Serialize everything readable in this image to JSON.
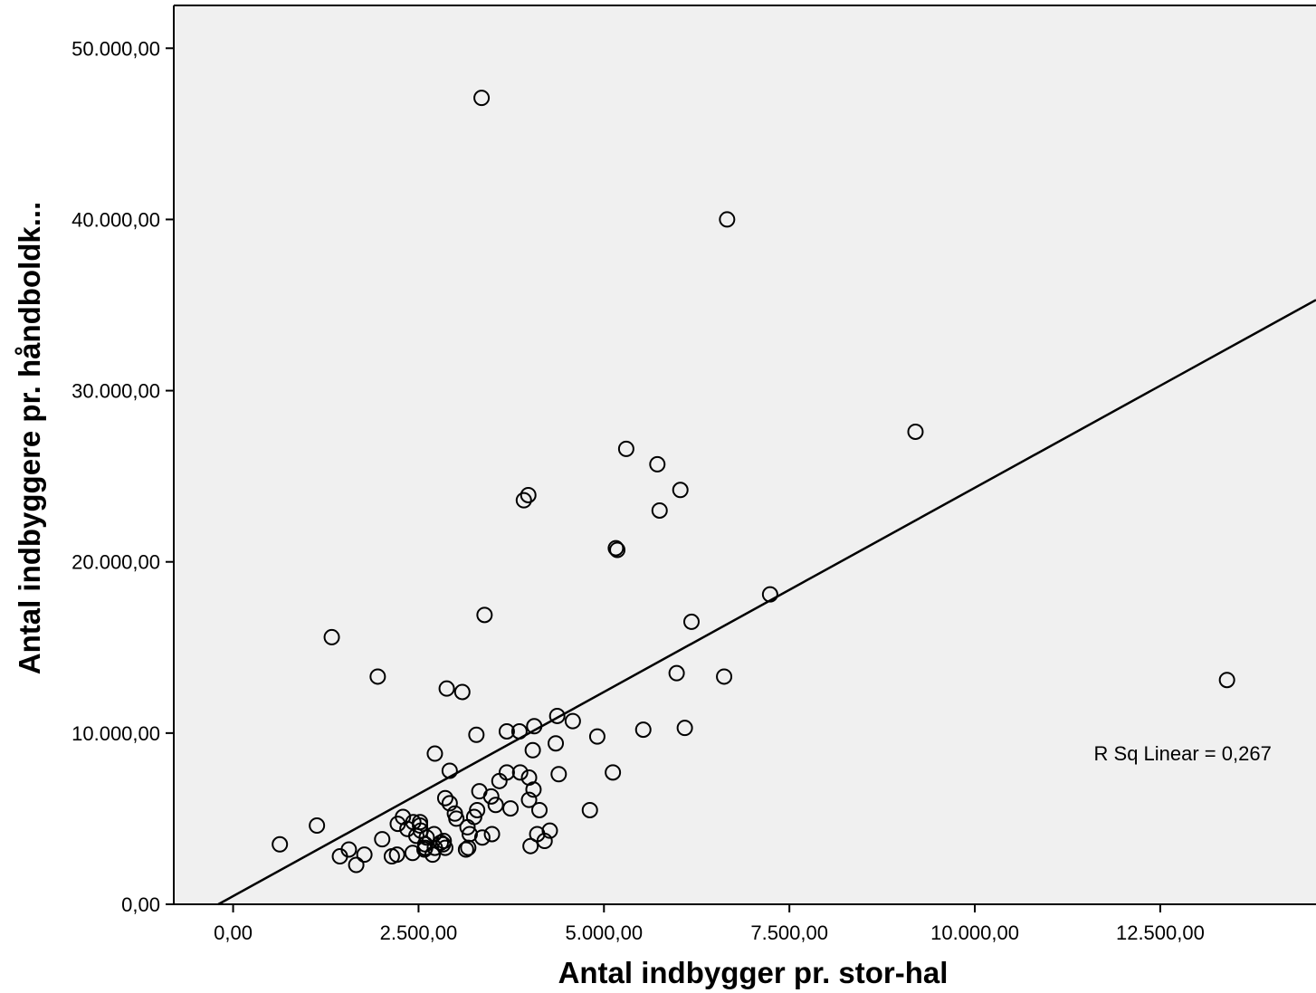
{
  "chart_data": {
    "type": "scatter",
    "xlabel": "Antal indbygger pr. stor-hal",
    "ylabel": "Antal indbyggere pr. håndboldk...",
    "xlim": [
      -800,
      14600
    ],
    "ylim": [
      0,
      52500
    ],
    "x_ticks": [
      {
        "value": 0,
        "label": "0,00"
      },
      {
        "value": 2500,
        "label": "2.500,00"
      },
      {
        "value": 5000,
        "label": "5.000,00"
      },
      {
        "value": 7500,
        "label": "7.500,00"
      },
      {
        "value": 10000,
        "label": "10.000,00"
      },
      {
        "value": 12500,
        "label": "12.500,00"
      }
    ],
    "y_ticks": [
      {
        "value": 0,
        "label": "0,00"
      },
      {
        "value": 10000,
        "label": "10.000,00"
      },
      {
        "value": 20000,
        "label": "20.000,00"
      },
      {
        "value": 30000,
        "label": "30.000,00"
      },
      {
        "value": 40000,
        "label": "40.000,00"
      },
      {
        "value": 50000,
        "label": "50.000,00"
      }
    ],
    "fit_line": {
      "type": "linear",
      "points": [
        [
          -200,
          0
        ],
        [
          14600,
          35300
        ]
      ],
      "annotation": "R Sq Linear = 0,267",
      "annotation_position": [
        14000,
        8400
      ]
    },
    "points": [
      [
        3350,
        47100
      ],
      [
        6660,
        40000
      ],
      [
        9200,
        27600
      ],
      [
        5300,
        26600
      ],
      [
        5720,
        25700
      ],
      [
        6030,
        24200
      ],
      [
        3980,
        23900
      ],
      [
        3920,
        23600
      ],
      [
        5750,
        23000
      ],
      [
        5160,
        20800
      ],
      [
        5180,
        20700
      ],
      [
        7240,
        18100
      ],
      [
        3390,
        16900
      ],
      [
        6180,
        16500
      ],
      [
        1330,
        15600
      ],
      [
        1950,
        13300
      ],
      [
        5980,
        13500
      ],
      [
        6620,
        13300
      ],
      [
        13400,
        13100
      ],
      [
        2880,
        12600
      ],
      [
        3090,
        12400
      ],
      [
        4370,
        11000
      ],
      [
        4580,
        10700
      ],
      [
        4060,
        10400
      ],
      [
        5530,
        10200
      ],
      [
        6090,
        10300
      ],
      [
        3690,
        10100
      ],
      [
        3860,
        10100
      ],
      [
        3280,
        9900
      ],
      [
        4910,
        9800
      ],
      [
        4350,
        9400
      ],
      [
        4040,
        9000
      ],
      [
        2720,
        8800
      ],
      [
        2920,
        7800
      ],
      [
        3690,
        7700
      ],
      [
        3870,
        7700
      ],
      [
        5120,
        7700
      ],
      [
        4390,
        7600
      ],
      [
        3990,
        7400
      ],
      [
        3590,
        7200
      ],
      [
        4050,
        6700
      ],
      [
        3320,
        6600
      ],
      [
        3480,
        6300
      ],
      [
        2860,
        6200
      ],
      [
        3990,
        6100
      ],
      [
        2920,
        5900
      ],
      [
        3540,
        5800
      ],
      [
        3740,
        5600
      ],
      [
        3290,
        5500
      ],
      [
        4130,
        5500
      ],
      [
        4810,
        5500
      ],
      [
        2990,
        5300
      ],
      [
        3250,
        5100
      ],
      [
        2290,
        5100
      ],
      [
        3010,
        5000
      ],
      [
        2430,
        4800
      ],
      [
        2220,
        4700
      ],
      [
        2520,
        4800
      ],
      [
        2520,
        4600
      ],
      [
        1130,
        4600
      ],
      [
        3160,
        4500
      ],
      [
        2350,
        4400
      ],
      [
        4270,
        4300
      ],
      [
        2530,
        4300
      ],
      [
        3190,
        4100
      ],
      [
        4100,
        4100
      ],
      [
        2710,
        4100
      ],
      [
        2470,
        4000
      ],
      [
        3490,
        4100
      ],
      [
        3360,
        3900
      ],
      [
        2610,
        3900
      ],
      [
        2010,
        3800
      ],
      [
        2840,
        3700
      ],
      [
        4200,
        3700
      ],
      [
        2800,
        3600
      ],
      [
        2830,
        3500
      ],
      [
        2590,
        3500
      ],
      [
        630,
        3500
      ],
      [
        2590,
        3300
      ],
      [
        4010,
        3400
      ],
      [
        2720,
        3300
      ],
      [
        2860,
        3300
      ],
      [
        3170,
        3300
      ],
      [
        3140,
        3200
      ],
      [
        2580,
        3200
      ],
      [
        1560,
        3200
      ],
      [
        2420,
        3000
      ],
      [
        2690,
        2900
      ],
      [
        1770,
        2900
      ],
      [
        2210,
        2900
      ],
      [
        2140,
        2800
      ],
      [
        1440,
        2800
      ],
      [
        1660,
        2300
      ]
    ]
  }
}
